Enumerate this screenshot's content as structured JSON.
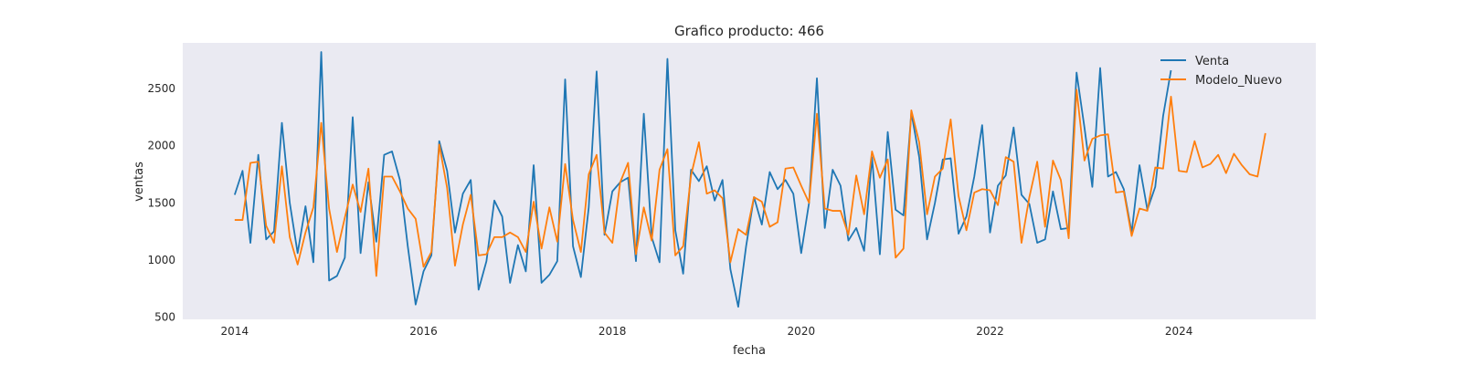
{
  "chart_data": {
    "type": "line",
    "title": "Grafico producto: 466",
    "xlabel": "fecha",
    "ylabel": "ventas",
    "xlim": [
      2013.45,
      2025.45
    ],
    "ylim": [
      480,
      2900
    ],
    "xticks": [
      2014,
      2016,
      2018,
      2020,
      2022,
      2024
    ],
    "yticks": [
      500,
      1000,
      1500,
      2000,
      2500
    ],
    "grid": false,
    "legend_position": "top-right",
    "background_color": "#eaeaf2",
    "series": [
      {
        "name": "Venta",
        "color": "#1f77b4",
        "x_start": 2014.0,
        "x_step": 0.08333,
        "values": [
          1570,
          1780,
          1150,
          1920,
          1180,
          1250,
          2200,
          1500,
          1060,
          1470,
          980,
          2820,
          820,
          860,
          1020,
          2250,
          1060,
          1680,
          1160,
          1920,
          1950,
          1700,
          1120,
          610,
          900,
          1040,
          2040,
          1780,
          1240,
          1580,
          1700,
          740,
          990,
          1520,
          1380,
          800,
          1130,
          900,
          1830,
          800,
          870,
          990,
          2580,
          1120,
          850,
          1460,
          2650,
          1220,
          1600,
          1680,
          1720,
          990,
          2280,
          1200,
          980,
          2760,
          1260,
          880,
          1790,
          1690,
          1820,
          1520,
          1700,
          920,
          590,
          1120,
          1550,
          1310,
          1770,
          1620,
          1700,
          1580,
          1060,
          1500,
          2590,
          1280,
          1790,
          1650,
          1170,
          1280,
          1080,
          1900,
          1050,
          2120,
          1440,
          1390,
          2290,
          1900,
          1180,
          1500,
          1880,
          1890,
          1230,
          1380,
          1730,
          2180,
          1240,
          1650,
          1740,
          2160,
          1570,
          1490,
          1150,
          1180,
          1600,
          1270,
          1280,
          2640,
          2160,
          1640,
          2680,
          1730,
          1770,
          1620,
          1240,
          1830,
          1440,
          1640,
          2260,
          2660
        ]
      },
      {
        "name": "Modelo_Nuevo",
        "color": "#ff7f0e",
        "x_start": 2014.0,
        "x_step": 0.08333,
        "values": [
          1350,
          1350,
          1850,
          1860,
          1300,
          1150,
          1820,
          1200,
          960,
          1240,
          1460,
          2200,
          1450,
          1070,
          1370,
          1660,
          1420,
          1800,
          860,
          1730,
          1730,
          1600,
          1450,
          1360,
          940,
          1070,
          2010,
          1630,
          950,
          1310,
          1570,
          1040,
          1050,
          1200,
          1200,
          1240,
          1200,
          1070,
          1510,
          1100,
          1460,
          1160,
          1840,
          1350,
          1070,
          1750,
          1920,
          1240,
          1150,
          1680,
          1850,
          1050,
          1460,
          1170,
          1790,
          1970,
          1040,
          1120,
          1740,
          2030,
          1580,
          1610,
          1540,
          980,
          1270,
          1220,
          1550,
          1510,
          1290,
          1330,
          1800,
          1810,
          1650,
          1500,
          2280,
          1450,
          1430,
          1430,
          1220,
          1740,
          1400,
          1950,
          1720,
          1880,
          1020,
          1100,
          2310,
          2030,
          1400,
          1730,
          1800,
          2230,
          1560,
          1260,
          1590,
          1620,
          1610,
          1480,
          1900,
          1860,
          1150,
          1550,
          1860,
          1290,
          1870,
          1700,
          1190,
          2490,
          1870,
          2060,
          2090,
          2100,
          1590,
          1600,
          1210,
          1450,
          1430,
          1810,
          1800,
          2430,
          1780,
          1770,
          2040,
          1810,
          1840,
          1920,
          1760,
          1930,
          1830,
          1750,
          1730,
          2110
        ]
      }
    ]
  }
}
